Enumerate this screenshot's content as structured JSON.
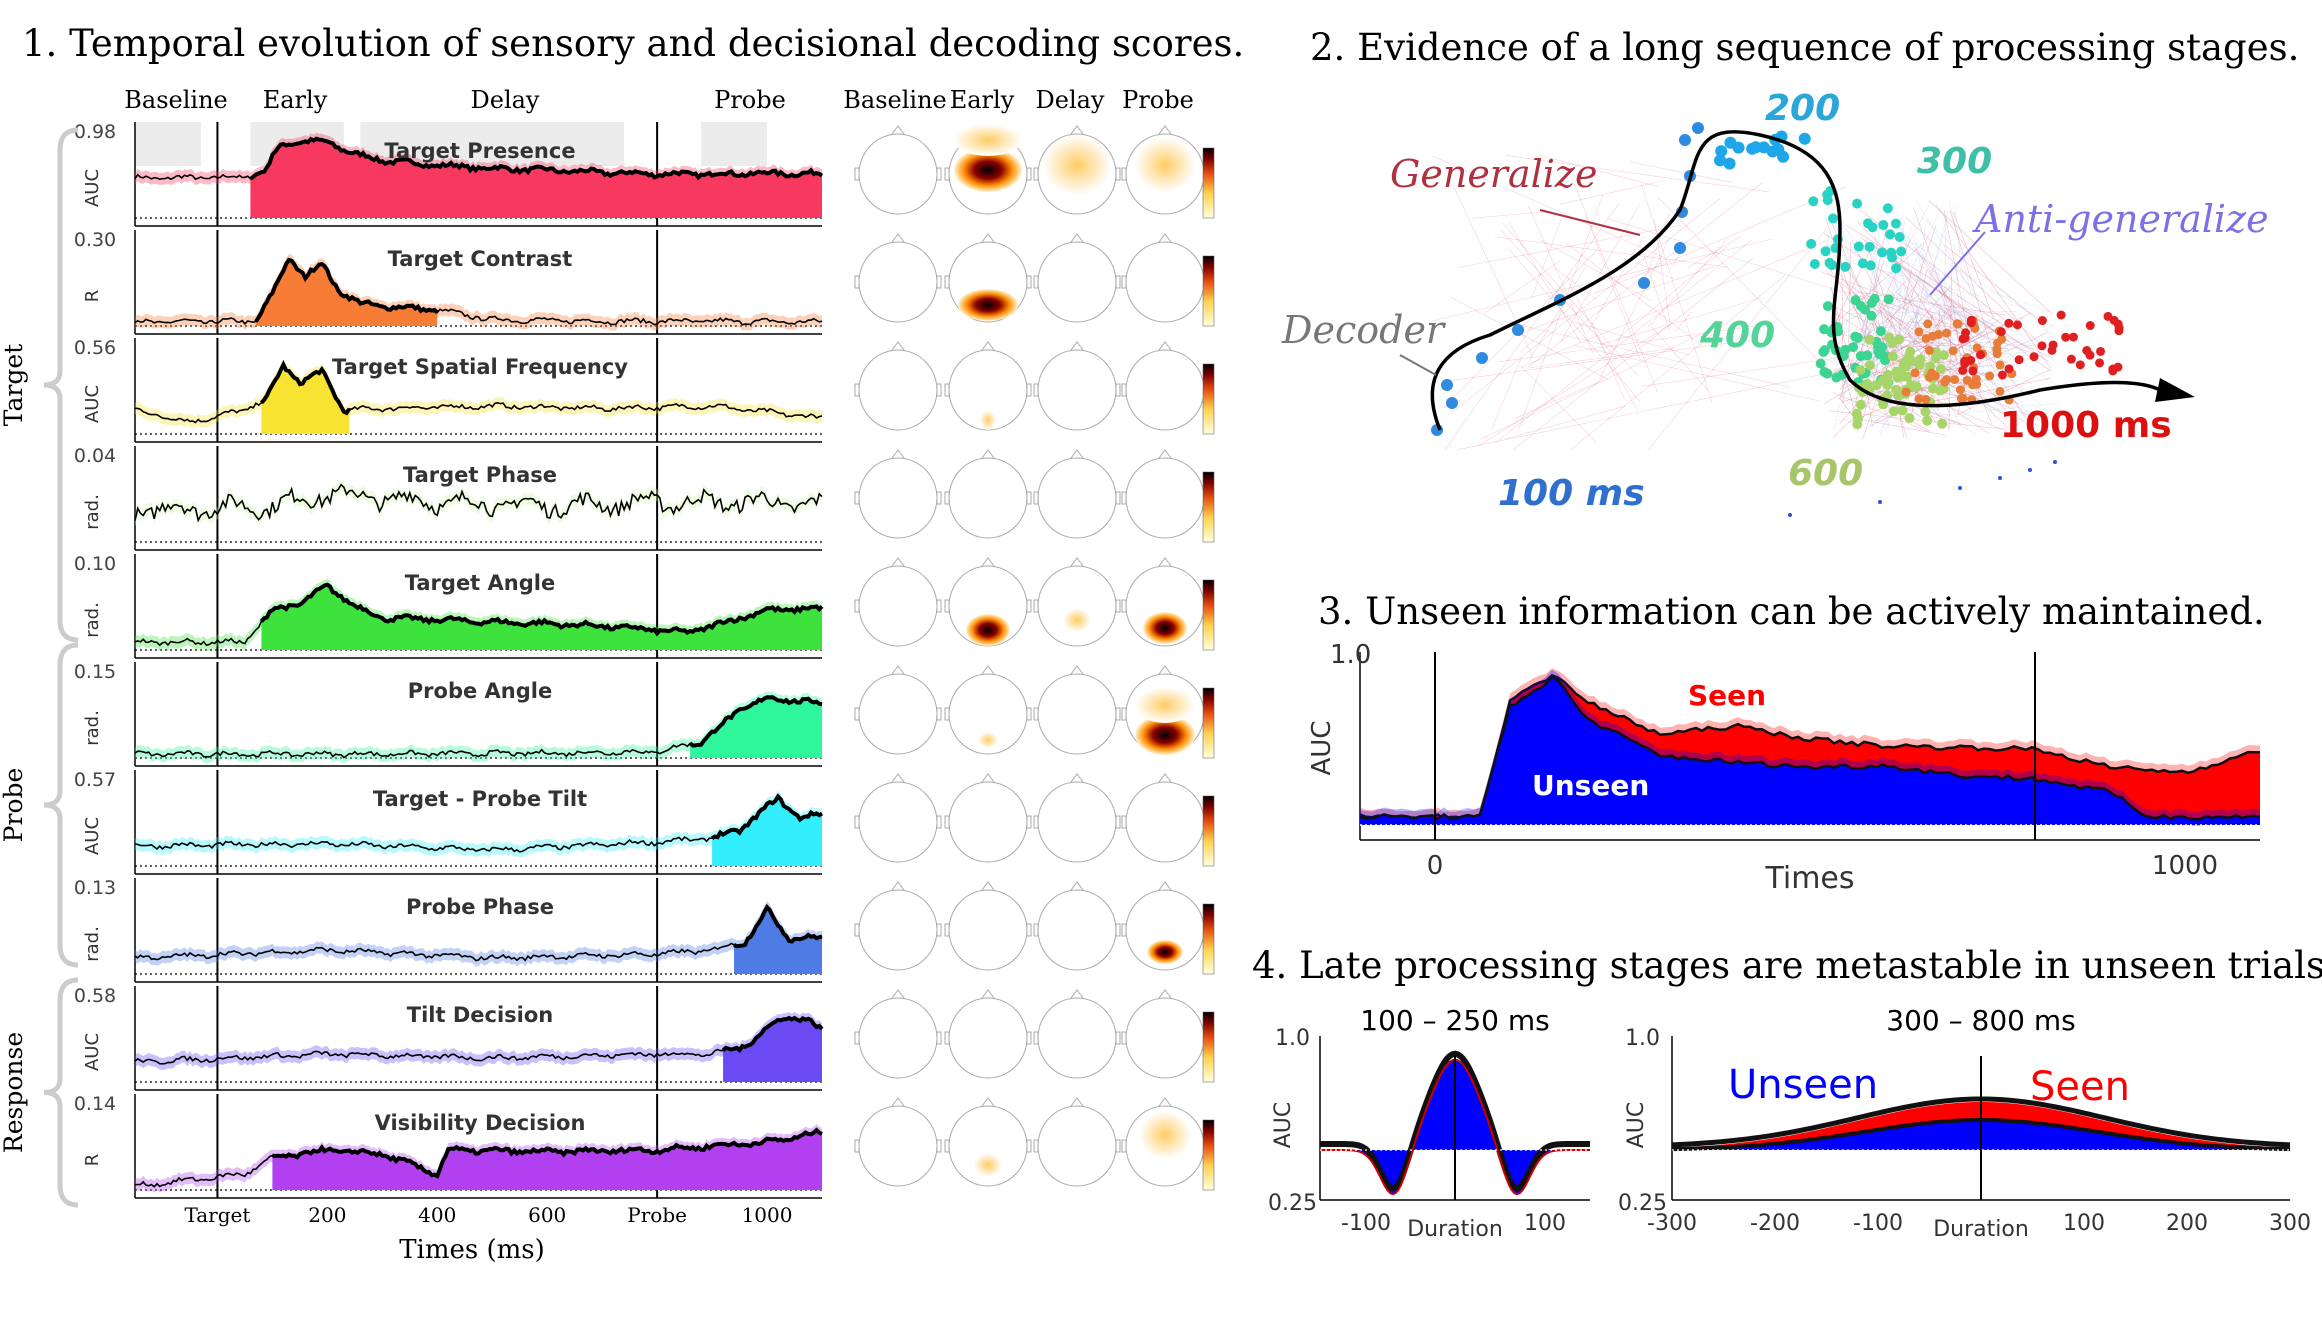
{
  "panel1": {
    "title": "1. Temporal evolution of sensory and decisional decoding scores.",
    "epochs": [
      "Baseline",
      "Early",
      "Delay",
      "Probe"
    ],
    "topo_headers": [
      "Baseline",
      "Early",
      "Delay",
      "Probe"
    ],
    "groups": [
      "Target",
      "Probe",
      "Response"
    ],
    "x_ticks": [
      "Target",
      "200",
      "400",
      "600",
      "Probe",
      "1000"
    ],
    "x_label": "Times (ms)"
  },
  "panel2": {
    "title": "2. Evidence of a long sequence of processing stages.",
    "labels": {
      "generalize": "Generalize",
      "anti": "Anti-generalize",
      "decoder": "Decoder",
      "t100": "100 ms",
      "t200": "200",
      "t300": "300",
      "t400": "400",
      "t600": "600",
      "t1000": "1000 ms"
    }
  },
  "panel3": {
    "title": "3. Unseen information can be actively maintained.",
    "ylabel": "AUC",
    "ytick": "1.0",
    "xlabel": "Times",
    "xticks": [
      "0",
      "1000"
    ],
    "seen": "Seen",
    "unseen": "Unseen"
  },
  "panel4": {
    "title": "4. Late processing stages are metastable in unseen trials.",
    "left": {
      "title": "100 – 250 ms",
      "ylabel": "AUC",
      "yticks": [
        "1.0",
        "0.25"
      ],
      "xticks": [
        "-100",
        "Duration",
        "100"
      ]
    },
    "right": {
      "title": "300 – 800 ms",
      "ylabel": "AUC",
      "yticks": [
        "1.0",
        "0.25"
      ],
      "xticks": [
        "-300",
        "-200",
        "-100",
        "Duration",
        "100",
        "200",
        "300"
      ],
      "seen": "Seen",
      "unseen": "Unseen"
    }
  },
  "colors": {
    "seen": "#ff0000",
    "unseen": "#0000ff"
  },
  "chart_data": [
    {
      "type": "area",
      "title": "Temporal evolution of sensory and decisional decoding scores",
      "x_range": [
        -150,
        1100
      ],
      "series": [
        {
          "name": "Target Presence",
          "ylabel": "AUC",
          "ymax_label": "0.98",
          "color": "#f7385f",
          "profile": [
            [
              -150,
              0.5
            ],
            [
              50,
              0.51
            ],
            [
              90,
              0.6
            ],
            [
              100,
              0.78
            ],
            [
              120,
              0.92
            ],
            [
              150,
              0.96
            ],
            [
              200,
              0.95
            ],
            [
              250,
              0.8
            ],
            [
              300,
              0.72
            ],
            [
              400,
              0.66
            ],
            [
              500,
              0.62
            ],
            [
              600,
              0.6
            ],
            [
              700,
              0.57
            ],
            [
              800,
              0.55
            ],
            [
              900,
              0.55
            ],
            [
              1000,
              0.56
            ],
            [
              1100,
              0.55
            ]
          ],
          "sig": [
            60,
            1100
          ]
        },
        {
          "name": "Target Contrast",
          "ylabel": "R",
          "ymax_label": "0.30",
          "color": "#f77c36",
          "profile": [
            [
              -150,
              0.05
            ],
            [
              70,
              0.06
            ],
            [
              100,
              0.4
            ],
            [
              130,
              0.85
            ],
            [
              160,
              0.62
            ],
            [
              190,
              0.78
            ],
            [
              220,
              0.45
            ],
            [
              260,
              0.28
            ],
            [
              300,
              0.25
            ],
            [
              400,
              0.2
            ],
            [
              500,
              0.08
            ],
            [
              700,
              0.06
            ],
            [
              900,
              0.06
            ],
            [
              1100,
              0.05
            ]
          ],
          "sig": [
            70,
            400
          ]
        },
        {
          "name": "Target Spatial Frequency",
          "ylabel": "AUC",
          "ymax_label": "0.56",
          "color": "#f9e332",
          "profile": [
            [
              -150,
              0.3
            ],
            [
              -50,
              0.15
            ],
            [
              50,
              0.3
            ],
            [
              90,
              0.45
            ],
            [
              120,
              0.85
            ],
            [
              150,
              0.65
            ],
            [
              190,
              0.78
            ],
            [
              230,
              0.3
            ],
            [
              300,
              0.32
            ],
            [
              500,
              0.35
            ],
            [
              700,
              0.32
            ],
            [
              900,
              0.35
            ],
            [
              1100,
              0.2
            ]
          ],
          "sig": [
            80,
            240
          ]
        },
        {
          "name": "Target Phase",
          "ylabel": "rad.",
          "ymax_label": "0.04",
          "color": "#cff5a3",
          "profile": [
            [
              -150,
              0.4
            ],
            [
              100,
              0.45
            ],
            [
              200,
              0.6
            ],
            [
              400,
              0.5
            ],
            [
              600,
              0.45
            ],
            [
              800,
              0.5
            ],
            [
              1000,
              0.5
            ],
            [
              1100,
              0.45
            ]
          ],
          "sig": []
        },
        {
          "name": "Target Angle",
          "ylabel": "rad.",
          "ymax_label": "0.10",
          "color": "#3ee23c",
          "profile": [
            [
              -150,
              0.1
            ],
            [
              50,
              0.1
            ],
            [
              100,
              0.5
            ],
            [
              150,
              0.58
            ],
            [
              200,
              0.8
            ],
            [
              250,
              0.55
            ],
            [
              300,
              0.4
            ],
            [
              400,
              0.38
            ],
            [
              500,
              0.35
            ],
            [
              600,
              0.33
            ],
            [
              700,
              0.3
            ],
            [
              800,
              0.25
            ],
            [
              850,
              0.22
            ],
            [
              900,
              0.3
            ],
            [
              1000,
              0.5
            ],
            [
              1100,
              0.52
            ]
          ],
          "sig": [
            80,
            1100
          ]
        },
        {
          "name": "Probe Angle",
          "ylabel": "rad.",
          "ymax_label": "0.15",
          "color": "#2ff59b",
          "profile": [
            [
              -150,
              0.05
            ],
            [
              300,
              0.05
            ],
            [
              600,
              0.06
            ],
            [
              800,
              0.08
            ],
            [
              880,
              0.2
            ],
            [
              950,
              0.6
            ],
            [
              1000,
              0.75
            ],
            [
              1050,
              0.72
            ],
            [
              1100,
              0.68
            ]
          ],
          "sig": [
            860,
            1100
          ]
        },
        {
          "name": "Target - Probe Tilt",
          "ylabel": "AUC",
          "ymax_label": "0.57",
          "color": "#33eefc",
          "profile": [
            [
              -150,
              0.25
            ],
            [
              200,
              0.28
            ],
            [
              500,
              0.2
            ],
            [
              800,
              0.3
            ],
            [
              900,
              0.35
            ],
            [
              950,
              0.45
            ],
            [
              1020,
              0.85
            ],
            [
              1060,
              0.6
            ],
            [
              1100,
              0.65
            ]
          ],
          "sig": [
            900,
            1100
          ]
        },
        {
          "name": "Probe Phase",
          "ylabel": "rad.",
          "ymax_label": "0.13",
          "color": "#4f7be5",
          "profile": [
            [
              -150,
              0.2
            ],
            [
              200,
              0.3
            ],
            [
              500,
              0.2
            ],
            [
              800,
              0.25
            ],
            [
              900,
              0.3
            ],
            [
              960,
              0.4
            ],
            [
              1000,
              0.8
            ],
            [
              1040,
              0.45
            ],
            [
              1100,
              0.45
            ]
          ],
          "sig": [
            940,
            1100
          ]
        },
        {
          "name": "Tilt Decision",
          "ylabel": "AUC",
          "ymax_label": "0.58",
          "color": "#6a4bf3",
          "profile": [
            [
              -150,
              0.25
            ],
            [
              200,
              0.35
            ],
            [
              500,
              0.3
            ],
            [
              800,
              0.35
            ],
            [
              900,
              0.35
            ],
            [
              960,
              0.45
            ],
            [
              1030,
              0.82
            ],
            [
              1070,
              0.78
            ],
            [
              1100,
              0.65
            ]
          ],
          "sig": [
            920,
            1100
          ]
        },
        {
          "name": "Visibility Decision",
          "ylabel": "R",
          "ymax_label": "0.14",
          "color": "#b040f0",
          "profile": [
            [
              -150,
              0.05
            ],
            [
              50,
              0.2
            ],
            [
              100,
              0.4
            ],
            [
              200,
              0.5
            ],
            [
              300,
              0.45
            ],
            [
              400,
              0.2
            ],
            [
              420,
              0.5
            ],
            [
              600,
              0.48
            ],
            [
              800,
              0.5
            ],
            [
              900,
              0.55
            ],
            [
              1000,
              0.6
            ],
            [
              1100,
              0.72
            ]
          ],
          "sig": [
            100,
            1100
          ]
        }
      ]
    },
    {
      "type": "area",
      "title": "Unseen information can be actively maintained",
      "xlabel": "Times",
      "ylabel": "AUC",
      "x_range": [
        -100,
        1100
      ],
      "series": [
        {
          "name": "Seen",
          "color": "#ff0000",
          "profile": [
            [
              -100,
              0.05
            ],
            [
              60,
              0.05
            ],
            [
              100,
              0.75
            ],
            [
              160,
              0.92
            ],
            [
              200,
              0.75
            ],
            [
              300,
              0.55
            ],
            [
              400,
              0.6
            ],
            [
              500,
              0.52
            ],
            [
              600,
              0.48
            ],
            [
              700,
              0.47
            ],
            [
              800,
              0.46
            ],
            [
              900,
              0.35
            ],
            [
              1000,
              0.32
            ],
            [
              1100,
              0.45
            ]
          ]
        },
        {
          "name": "Unseen",
          "color": "#0000ff",
          "profile": [
            [
              -100,
              0.05
            ],
            [
              60,
              0.05
            ],
            [
              100,
              0.72
            ],
            [
              160,
              0.9
            ],
            [
              200,
              0.65
            ],
            [
              300,
              0.42
            ],
            [
              400,
              0.38
            ],
            [
              500,
              0.35
            ],
            [
              600,
              0.36
            ],
            [
              700,
              0.3
            ],
            [
              800,
              0.28
            ],
            [
              900,
              0.2
            ],
            [
              950,
              0.05
            ],
            [
              1100,
              0.05
            ]
          ]
        }
      ]
    },
    {
      "type": "line",
      "title": "100 – 250 ms",
      "ylabel": "AUC",
      "ylim": [
        0.25,
        1.0
      ],
      "series": [
        {
          "name": "Seen",
          "color": "#ff0000"
        },
        {
          "name": "Unseen",
          "color": "#0000ff"
        }
      ]
    },
    {
      "type": "line",
      "title": "300 – 800 ms",
      "ylabel": "AUC",
      "ylim": [
        0.25,
        1.0
      ],
      "x_range": [
        -300,
        300
      ],
      "series": [
        {
          "name": "Seen",
          "color": "#ff0000"
        },
        {
          "name": "Unseen",
          "color": "#0000ff"
        }
      ]
    }
  ]
}
